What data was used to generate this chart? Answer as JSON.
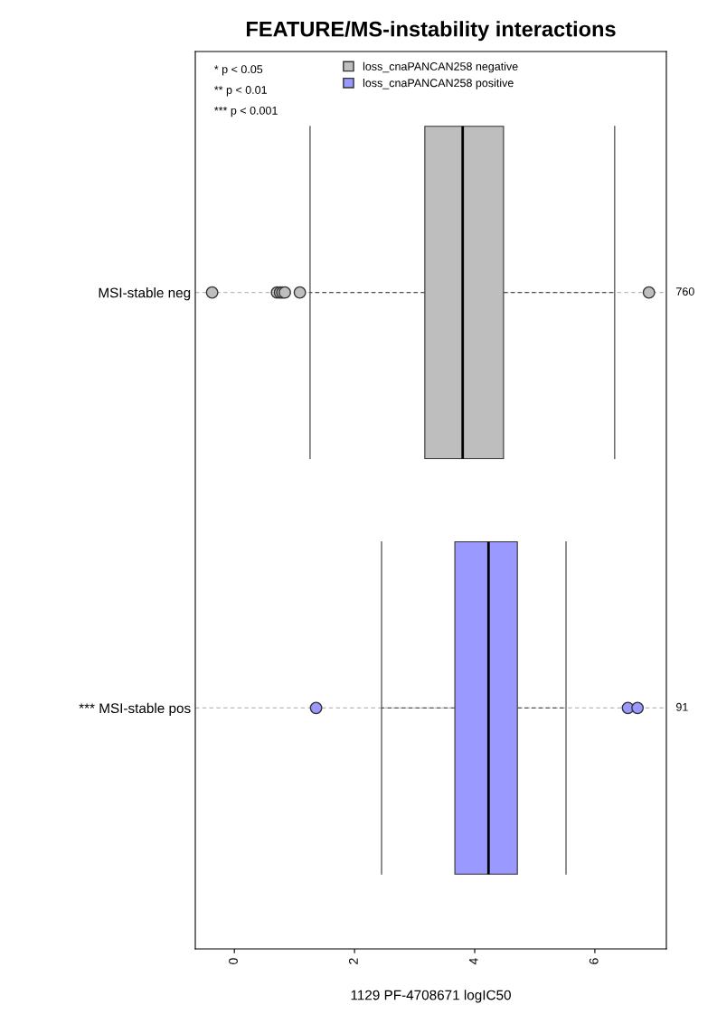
{
  "chart_data": {
    "type": "box",
    "title": "FEATURE/MS-instability interactions",
    "xlabel": "1129 PF-4708671 logIC50",
    "orientation": "horizontal",
    "categories": [
      "MSI-stable neg",
      "*** MSI-stable pos"
    ],
    "series": [
      {
        "name": "loss_cnaPANCAN258 negative",
        "color": "#bebebe",
        "boxes": [
          {
            "low": 1.26,
            "q1": 3.17,
            "median": 3.8,
            "q3": 4.48,
            "high": 6.33,
            "outliers": [
              -0.37,
              0.71,
              0.76,
              0.8,
              0.84,
              1.09,
              6.9
            ]
          },
          null
        ]
      },
      {
        "name": "loss_cnaPANCAN258 positive",
        "color": "#9999ff",
        "boxes": [
          null,
          {
            "low": 2.45,
            "q1": 3.67,
            "median": 4.23,
            "q3": 4.71,
            "high": 5.52,
            "outliers": [
              1.36,
              6.55,
              6.71
            ]
          }
        ]
      }
    ],
    "xlim": [
      -0.65,
      7.19
    ],
    "xticks": [
      0,
      2,
      4,
      6
    ],
    "grid": "y",
    "legend": "top",
    "annotations": [
      "* p < 0.05",
      "** p < 0.01",
      "*** p < 0.001",
      "760",
      "91"
    ]
  }
}
